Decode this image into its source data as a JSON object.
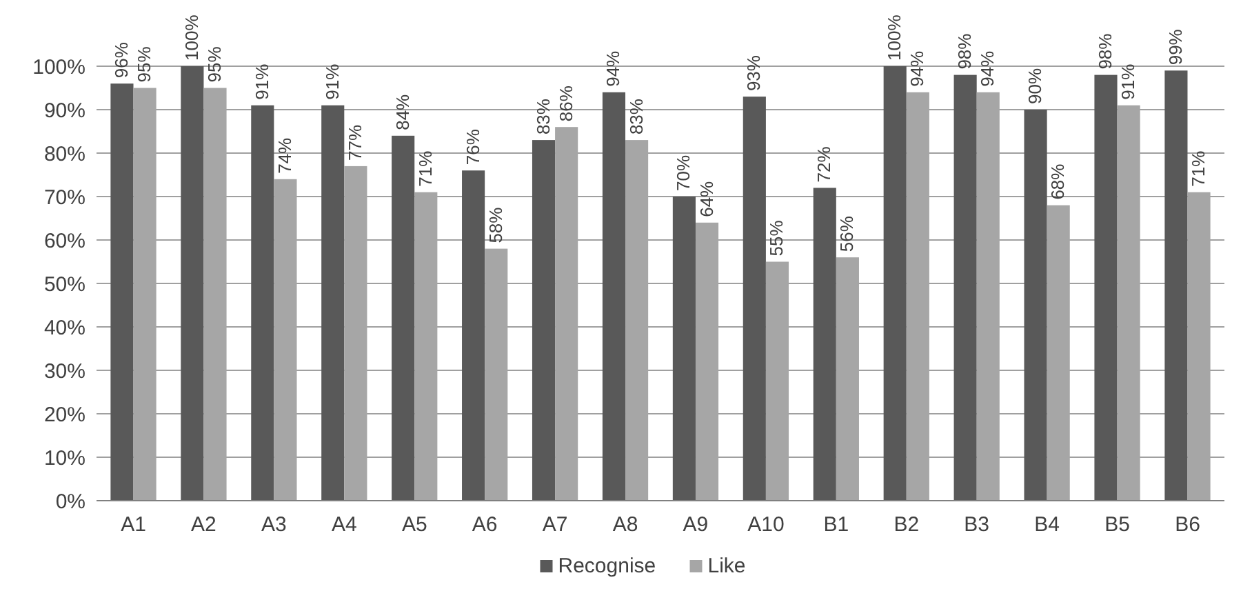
{
  "chart_data": {
    "type": "bar",
    "categories": [
      "A1",
      "A2",
      "A3",
      "A4",
      "A5",
      "A6",
      "A7",
      "A8",
      "A9",
      "A10",
      "B1",
      "B2",
      "B3",
      "B4",
      "B5",
      "B6"
    ],
    "series": [
      {
        "name": "Recognise",
        "color": "#595959",
        "values": [
          96,
          100,
          91,
          91,
          84,
          76,
          83,
          94,
          70,
          93,
          72,
          100,
          98,
          90,
          98,
          99
        ],
        "value_labels": [
          "96%",
          "100%",
          "91%",
          "91%",
          "84%",
          "76%",
          "83%",
          "94%",
          "70%",
          "93%",
          "72%",
          "100%",
          "98%",
          "90%",
          "98%",
          "99%"
        ]
      },
      {
        "name": "Like",
        "color": "#a6a6a6",
        "values": [
          95,
          95,
          74,
          77,
          71,
          58,
          86,
          83,
          64,
          55,
          56,
          94,
          94,
          68,
          91,
          71
        ],
        "value_labels": [
          "95%",
          "95%",
          "74%",
          "77%",
          "71%",
          "58%",
          "86%",
          "83%",
          "64%",
          "55%",
          "56%",
          "94%",
          "94%",
          "68%",
          "91%",
          "71%"
        ]
      }
    ],
    "ylim": [
      0,
      100
    ],
    "yticks": [
      {
        "value": 0,
        "label": "0%"
      },
      {
        "value": 10,
        "label": "10%"
      },
      {
        "value": 20,
        "label": "20%"
      },
      {
        "value": 30,
        "label": "30%"
      },
      {
        "value": 40,
        "label": "40%"
      },
      {
        "value": 50,
        "label": "50%"
      },
      {
        "value": 60,
        "label": "60%"
      },
      {
        "value": 70,
        "label": "70%"
      },
      {
        "value": 80,
        "label": "80%"
      },
      {
        "value": 90,
        "label": "90%"
      },
      {
        "value": 100,
        "label": "100%"
      }
    ],
    "grid": "y",
    "legend": "bottom"
  }
}
